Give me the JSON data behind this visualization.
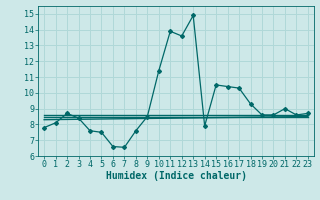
{
  "title": "",
  "xlabel": "Humidex (Indice chaleur)",
  "ylabel": "",
  "bg_color": "#cde8e8",
  "grid_color": "#b0d8d8",
  "line_color": "#006868",
  "xlim": [
    -0.5,
    23.5
  ],
  "ylim": [
    6,
    15.5
  ],
  "yticks": [
    6,
    7,
    8,
    9,
    10,
    11,
    12,
    13,
    14,
    15
  ],
  "xticks": [
    0,
    1,
    2,
    3,
    4,
    5,
    6,
    7,
    8,
    9,
    10,
    11,
    12,
    13,
    14,
    15,
    16,
    17,
    18,
    19,
    20,
    21,
    22,
    23
  ],
  "series1_x": [
    0,
    1,
    2,
    3,
    4,
    5,
    6,
    7,
    8,
    9,
    10,
    11,
    12,
    13,
    14,
    15,
    16,
    17,
    18,
    19,
    20,
    21,
    22,
    23
  ],
  "series1_y": [
    7.8,
    8.1,
    8.7,
    8.4,
    7.6,
    7.5,
    6.6,
    6.55,
    7.6,
    8.5,
    11.4,
    13.9,
    13.6,
    14.9,
    7.9,
    10.5,
    10.4,
    10.3,
    9.3,
    8.6,
    8.6,
    9.0,
    8.6,
    8.7
  ],
  "series2_x": [
    0,
    23
  ],
  "series2_y": [
    8.3,
    8.5
  ],
  "series3_x": [
    0,
    23
  ],
  "series3_y": [
    8.5,
    8.5
  ],
  "series4_x": [
    0,
    23
  ],
  "series4_y": [
    8.6,
    8.6
  ],
  "font_family": "monospace",
  "tick_fontsize": 6,
  "label_fontsize": 7
}
